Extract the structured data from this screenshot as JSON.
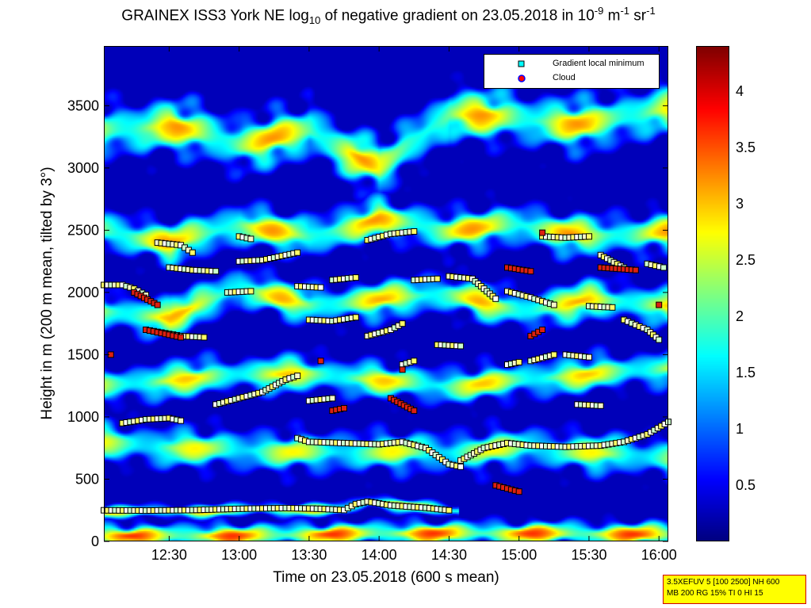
{
  "title": {
    "prefix": "GRAINEX ISS3 York NE log",
    "sub": "10",
    "middle": " of negative gradient on 23.05.2018 in 10",
    "sup1": "-9",
    "unit1": " m",
    "sup2": "-1",
    "unit2": " sr",
    "sup3": "-1"
  },
  "xlabel": "Time on 23.05.2018 (600 s mean)",
  "ylabel": "Height in m (200 m mean, tilted by 3°)",
  "legend": {
    "items": [
      {
        "label": "Gradient local minimum",
        "marker": "square",
        "color": "#00ffff"
      },
      {
        "label": "Cloud",
        "marker": "circle",
        "color": "#ff0000",
        "edge": "#0000ff"
      }
    ]
  },
  "info_box": {
    "line1": "3.5XEFUV 5 [100 2500] NH 600",
    "line2": "MB 200 RG 15% TI 0 HI 15"
  },
  "colors": {
    "colormap": "jet",
    "marker_edge": "#000000",
    "info_bg": "#ffff00",
    "info_border": "#d00000"
  },
  "chart_data": {
    "type": "heatmap",
    "title": "GRAINEX ISS3 York NE log10 of negative gradient on 23.05.2018 in 10^-9 m^-1 sr^-1",
    "xlabel": "Time on 23.05.2018 (600 s mean)",
    "ylabel": "Height in m (200 m mean, tilted by 3°)",
    "x_unit": "time (HH:MM)",
    "xlim": [
      "12:02",
      "16:04"
    ],
    "ylim": [
      0,
      3980
    ],
    "x_ticks": [
      "12:30",
      "13:00",
      "13:30",
      "14:00",
      "14:30",
      "15:00",
      "15:30",
      "16:00"
    ],
    "y_ticks": [
      0,
      500,
      1000,
      1500,
      2000,
      2500,
      3000,
      3500
    ],
    "colorbar": {
      "range": [
        0,
        4.4
      ],
      "ticks": [
        0.5,
        1,
        1.5,
        2,
        2.5,
        3,
        3.5,
        4
      ]
    },
    "legend_position": "top-right",
    "grid": false,
    "layers": [
      {
        "name": "surface",
        "points": [
          [
            "12:02",
            50
          ],
          [
            "13:00",
            50
          ],
          [
            "14:00",
            70
          ],
          [
            "15:00",
            70
          ],
          [
            "16:04",
            60
          ]
        ]
      },
      {
        "name": "lowest layer",
        "points": [
          [
            "12:02",
            245
          ],
          [
            "12:40",
            250
          ],
          [
            "13:15",
            265
          ],
          [
            "13:45",
            260
          ],
          [
            "13:55",
            320
          ],
          [
            "14:10",
            300
          ],
          [
            "14:30",
            250
          ]
        ]
      },
      {
        "name": "boundary layer",
        "points": [
          [
            "12:02",
            800
          ],
          [
            "12:30",
            760
          ],
          [
            "13:00",
            740
          ],
          [
            "13:30",
            720
          ],
          [
            "14:00",
            730
          ],
          [
            "14:30",
            720
          ],
          [
            "15:00",
            760
          ],
          [
            "15:30",
            720
          ],
          [
            "16:04",
            680
          ]
        ]
      },
      {
        "name": "lower cloud band",
        "points": [
          [
            "12:02",
            1250
          ],
          [
            "12:30",
            1300
          ],
          [
            "13:00",
            1350
          ],
          [
            "13:30",
            1350
          ],
          [
            "14:00",
            1300
          ],
          [
            "14:30",
            1250
          ],
          [
            "15:00",
            1300
          ],
          [
            "15:30",
            1350
          ],
          [
            "16:04",
            1400
          ]
        ]
      },
      {
        "name": "middle band",
        "points": [
          [
            "12:02",
            1850
          ],
          [
            "12:30",
            1800
          ],
          [
            "13:00",
            2050
          ],
          [
            "13:30",
            1900
          ],
          [
            "14:00",
            1950
          ],
          [
            "14:30",
            2000
          ],
          [
            "15:00",
            1850
          ],
          [
            "15:30",
            1950
          ],
          [
            "16:04",
            1900
          ]
        ]
      },
      {
        "name": "upper band",
        "points": [
          [
            "12:02",
            2500
          ],
          [
            "12:30",
            2400
          ],
          [
            "13:00",
            2550
          ],
          [
            "13:30",
            2450
          ],
          [
            "14:00",
            2600
          ],
          [
            "14:30",
            2500
          ],
          [
            "15:00",
            2550
          ],
          [
            "15:30",
            2450
          ],
          [
            "16:04",
            2500
          ]
        ]
      },
      {
        "name": "top band",
        "points": [
          [
            "12:02",
            3300
          ],
          [
            "12:30",
            3350
          ],
          [
            "13:00",
            3200
          ],
          [
            "13:30",
            3300
          ],
          [
            "14:00",
            3000
          ],
          [
            "14:30",
            3450
          ],
          [
            "15:00",
            3400
          ],
          [
            "15:30",
            3350
          ],
          [
            "16:04",
            3500
          ]
        ]
      }
    ],
    "series": [
      {
        "name": "Gradient local minimum",
        "marker": "square",
        "segments": [
          {
            "points": [
              [
                "12:02",
                250
              ],
              [
                "12:20",
                248
              ],
              [
                "12:40",
                252
              ],
              [
                "13:00",
                262
              ],
              [
                "13:20",
                268
              ],
              [
                "13:35",
                262
              ],
              [
                "13:45",
                252
              ],
              [
                "13:50",
                300
              ],
              [
                "13:55",
                320
              ],
              [
                "14:05",
                290
              ],
              [
                "14:20",
                270
              ],
              [
                "14:30",
                250
              ]
            ]
          },
          {
            "points": [
              [
                "12:10",
                950
              ],
              [
                "12:20",
                980
              ],
              [
                "12:30",
                990
              ],
              [
                "12:35",
                970
              ]
            ]
          },
          {
            "points": [
              [
                "12:50",
                1100
              ],
              [
                "13:00",
                1150
              ],
              [
                "13:10",
                1200
              ],
              [
                "13:20",
                1300
              ],
              [
                "13:25",
                1330
              ]
            ]
          },
          {
            "points": [
              [
                "13:25",
                830
              ],
              [
                "13:30",
                800
              ],
              [
                "13:45",
                790
              ],
              [
                "14:00",
                780
              ],
              [
                "14:10",
                800
              ],
              [
                "14:20",
                750
              ],
              [
                "14:30",
                620
              ],
              [
                "14:35",
                600
              ]
            ]
          },
          {
            "points": [
              [
                "14:35",
                650
              ],
              [
                "14:45",
                750
              ],
              [
                "14:55",
                790
              ],
              [
                "15:05",
                770
              ],
              [
                "15:20",
                760
              ],
              [
                "15:35",
                770
              ],
              [
                "15:45",
                800
              ],
              [
                "15:55",
                860
              ],
              [
                "16:04",
                960
              ]
            ]
          },
          {
            "points": [
              [
                "12:02",
                2060
              ],
              [
                "12:10",
                2060
              ],
              [
                "12:15",
                2030
              ],
              [
                "12:20",
                1980
              ]
            ]
          },
          {
            "points": [
              [
                "12:20",
                1700
              ],
              [
                "12:35",
                1650
              ],
              [
                "12:45",
                1640
              ]
            ]
          },
          {
            "points": [
              [
                "12:30",
                2200
              ],
              [
                "12:40",
                2180
              ],
              [
                "12:50",
                2170
              ]
            ]
          },
          {
            "points": [
              [
                "12:25",
                2400
              ],
              [
                "12:35",
                2380
              ],
              [
                "12:40",
                2320
              ]
            ]
          },
          {
            "points": [
              [
                "13:00",
                2450
              ],
              [
                "13:05",
                2430
              ]
            ]
          },
          {
            "points": [
              [
                "13:00",
                2250
              ],
              [
                "13:10",
                2260
              ],
              [
                "13:20",
                2300
              ],
              [
                "13:25",
                2320
              ]
            ]
          },
          {
            "points": [
              [
                "12:55",
                2000
              ],
              [
                "13:05",
                2010
              ]
            ]
          },
          {
            "points": [
              [
                "13:25",
                2050
              ],
              [
                "13:35",
                2040
              ]
            ]
          },
          {
            "points": [
              [
                "13:30",
                1780
              ],
              [
                "13:40",
                1770
              ],
              [
                "13:50",
                1800
              ]
            ]
          },
          {
            "points": [
              [
                "13:30",
                1130
              ],
              [
                "13:40",
                1150
              ]
            ]
          },
          {
            "points": [
              [
                "13:40",
                2100
              ],
              [
                "13:50",
                2120
              ]
            ]
          },
          {
            "points": [
              [
                "13:55",
                1650
              ],
              [
                "14:05",
                1700
              ],
              [
                "14:10",
                1750
              ]
            ]
          },
          {
            "points": [
              [
                "13:55",
                2420
              ],
              [
                "14:05",
                2470
              ],
              [
                "14:15",
                2490
              ]
            ]
          },
          {
            "points": [
              [
                "14:10",
                1420
              ],
              [
                "14:15",
                1450
              ]
            ]
          },
          {
            "points": [
              [
                "14:15",
                2100
              ],
              [
                "14:25",
                2110
              ]
            ]
          },
          {
            "points": [
              [
                "14:30",
                2130
              ],
              [
                "14:40",
                2110
              ],
              [
                "14:50",
                1950
              ]
            ]
          },
          {
            "points": [
              [
                "14:25",
                1580
              ],
              [
                "14:35",
                1570
              ]
            ]
          },
          {
            "points": [
              [
                "14:55",
                1420
              ],
              [
                "15:00",
                1440
              ]
            ]
          },
          {
            "points": [
              [
                "15:05",
                1450
              ],
              [
                "15:15",
                1500
              ]
            ]
          },
          {
            "points": [
              [
                "14:55",
                2010
              ],
              [
                "15:05",
                1960
              ],
              [
                "15:15",
                1900
              ]
            ]
          },
          {
            "points": [
              [
                "15:10",
                2450
              ],
              [
                "15:20",
                2440
              ],
              [
                "15:30",
                2450
              ]
            ]
          },
          {
            "points": [
              [
                "15:20",
                1500
              ],
              [
                "15:30",
                1480
              ]
            ]
          },
          {
            "points": [
              [
                "15:30",
                1890
              ],
              [
                "15:40",
                1880
              ]
            ]
          },
          {
            "points": [
              [
                "15:35",
                2300
              ],
              [
                "15:45",
                2200
              ]
            ]
          },
          {
            "points": [
              [
                "15:45",
                1780
              ],
              [
                "15:55",
                1700
              ],
              [
                "16:00",
                1620
              ]
            ]
          },
          {
            "points": [
              [
                "15:25",
                1100
              ],
              [
                "15:35",
                1090
              ]
            ]
          },
          {
            "points": [
              [
                "15:55",
                2230
              ],
              [
                "16:02",
                2200
              ]
            ]
          }
        ]
      },
      {
        "name": "Cloud",
        "marker": "circle",
        "segments": [
          {
            "points": [
              [
                "12:20",
                1700
              ],
              [
                "12:35",
                1640
              ]
            ]
          },
          {
            "points": [
              [
                "12:15",
                2000
              ],
              [
                "12:25",
                1900
              ]
            ]
          },
          {
            "points": [
              [
                "13:35",
                1450
              ]
            ]
          },
          {
            "points": [
              [
                "13:40",
                1050
              ],
              [
                "13:45",
                1070
              ]
            ]
          },
          {
            "points": [
              [
                "14:05",
                1150
              ],
              [
                "14:15",
                1050
              ]
            ]
          },
          {
            "points": [
              [
                "14:10",
                1380
              ]
            ]
          },
          {
            "points": [
              [
                "14:50",
                450
              ],
              [
                "15:00",
                400
              ]
            ]
          },
          {
            "points": [
              [
                "15:05",
                1650
              ],
              [
                "15:10",
                1700
              ]
            ]
          },
          {
            "points": [
              [
                "15:35",
                2200
              ],
              [
                "15:50",
                2180
              ]
            ]
          },
          {
            "points": [
              [
                "15:10",
                2480
              ]
            ]
          },
          {
            "points": [
              [
                "14:55",
                2200
              ],
              [
                "15:05",
                2170
              ]
            ]
          },
          {
            "points": [
              [
                "12:05",
                1500
              ]
            ]
          },
          {
            "points": [
              [
                "16:00",
                1900
              ]
            ]
          }
        ]
      }
    ]
  }
}
